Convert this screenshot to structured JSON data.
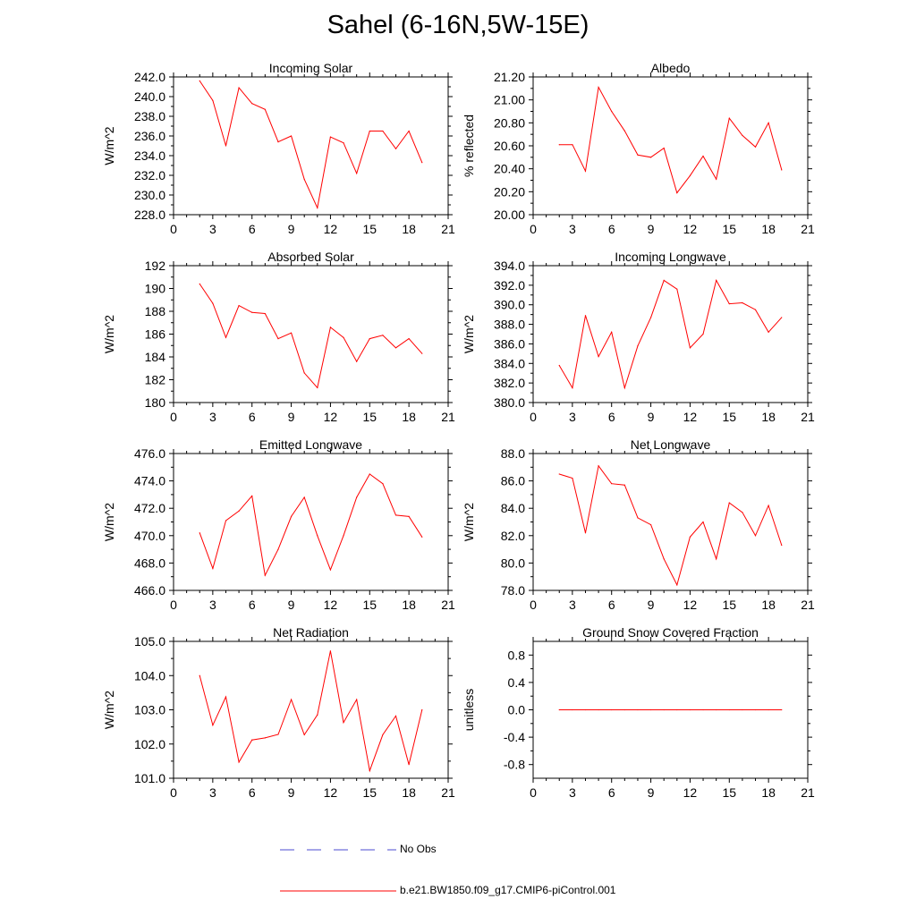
{
  "page_title": "Sahel (6-16N,5W-15E)",
  "colors": {
    "model": "#ff0000",
    "obs": "#4b4bd2",
    "axis": "#000000"
  },
  "legend": {
    "obs_label": "No Obs",
    "model_label": "b.e21.BW1850.f09_g17.CMIP6-piControl.001"
  },
  "chart_data": [
    {
      "type": "line",
      "title": "Incoming Solar",
      "xlabel": "",
      "ylabel": "W/m^2",
      "xlim": [
        0,
        21
      ],
      "xticks": [
        0,
        3,
        6,
        9,
        12,
        15,
        18,
        21
      ],
      "ylim": [
        228,
        242
      ],
      "yticks": [
        "228.0",
        "230.0",
        "232.0",
        "234.0",
        "236.0",
        "238.0",
        "240.0",
        "242.0"
      ],
      "series": [
        {
          "name": "b.e21.BW1850.f09_g17.CMIP6-piControl.001",
          "x": [
            2,
            3,
            4,
            5,
            6,
            7,
            8,
            9,
            10,
            11,
            12,
            13,
            14,
            15,
            16,
            17,
            18,
            19
          ],
          "y": [
            241.6,
            239.6,
            235.0,
            240.9,
            239.3,
            238.7,
            235.4,
            236.0,
            231.6,
            228.7,
            235.9,
            235.3,
            232.2,
            236.5,
            236.5,
            234.7,
            236.5,
            233.3
          ]
        }
      ]
    },
    {
      "type": "line",
      "title": "Albedo",
      "xlabel": "",
      "ylabel": "% reflected",
      "xlim": [
        0,
        21
      ],
      "xticks": [
        0,
        3,
        6,
        9,
        12,
        15,
        18,
        21
      ],
      "ylim": [
        20.0,
        21.2
      ],
      "yticks": [
        "20.00",
        "20.20",
        "20.40",
        "20.60",
        "20.80",
        "21.00",
        "21.20"
      ],
      "series": [
        {
          "name": "b.e21.BW1850.f09_g17.CMIP6-piControl.001",
          "x": [
            2,
            3,
            4,
            5,
            6,
            7,
            8,
            9,
            10,
            11,
            12,
            13,
            14,
            15,
            16,
            17,
            18,
            19
          ],
          "y": [
            20.61,
            20.61,
            20.38,
            21.11,
            20.9,
            20.73,
            20.52,
            20.5,
            20.58,
            20.19,
            20.34,
            20.51,
            20.31,
            20.84,
            20.69,
            20.59,
            20.8,
            20.39
          ]
        }
      ]
    },
    {
      "type": "line",
      "title": "Absorbed Solar",
      "xlabel": "",
      "ylabel": "W/m^2",
      "xlim": [
        0,
        21
      ],
      "xticks": [
        0,
        3,
        6,
        9,
        12,
        15,
        18,
        21
      ],
      "ylim": [
        180,
        192
      ],
      "yticks": [
        "180",
        "182",
        "184",
        "186",
        "188",
        "190",
        "192"
      ],
      "series": [
        {
          "name": "b.e21.BW1850.f09_g17.CMIP6-piControl.001",
          "x": [
            2,
            3,
            4,
            5,
            6,
            7,
            8,
            9,
            10,
            11,
            12,
            13,
            14,
            15,
            16,
            17,
            18,
            19
          ],
          "y": [
            190.4,
            188.7,
            185.7,
            188.5,
            187.9,
            187.8,
            185.6,
            186.1,
            182.6,
            181.3,
            186.6,
            185.7,
            183.6,
            185.6,
            185.9,
            184.8,
            185.6,
            184.3
          ]
        }
      ]
    },
    {
      "type": "line",
      "title": "Incoming Longwave",
      "xlabel": "",
      "ylabel": "W/m^2",
      "xlim": [
        0,
        21
      ],
      "xticks": [
        0,
        3,
        6,
        9,
        12,
        15,
        18,
        21
      ],
      "ylim": [
        380,
        394
      ],
      "yticks": [
        "380.0",
        "382.0",
        "384.0",
        "386.0",
        "388.0",
        "390.0",
        "392.0",
        "394.0"
      ],
      "series": [
        {
          "name": "b.e21.BW1850.f09_g17.CMIP6-piControl.001",
          "x": [
            2,
            3,
            4,
            5,
            6,
            7,
            8,
            9,
            10,
            11,
            12,
            13,
            14,
            15,
            16,
            17,
            18,
            19
          ],
          "y": [
            383.8,
            381.5,
            388.9,
            384.7,
            387.2,
            381.5,
            385.8,
            388.7,
            392.5,
            391.6,
            385.6,
            387.0,
            392.5,
            390.1,
            390.2,
            389.5,
            387.2,
            388.7
          ]
        }
      ]
    },
    {
      "type": "line",
      "title": "Emitted Longwave",
      "xlabel": "",
      "ylabel": "W/m^2",
      "xlim": [
        0,
        21
      ],
      "xticks": [
        0,
        3,
        6,
        9,
        12,
        15,
        18,
        21
      ],
      "ylim": [
        466,
        476
      ],
      "yticks": [
        "466.0",
        "468.0",
        "470.0",
        "472.0",
        "474.0",
        "476.0"
      ],
      "series": [
        {
          "name": "b.e21.BW1850.f09_g17.CMIP6-piControl.001",
          "x": [
            2,
            3,
            4,
            5,
            6,
            7,
            8,
            9,
            10,
            11,
            12,
            13,
            14,
            15,
            16,
            17,
            18,
            19
          ],
          "y": [
            470.2,
            467.6,
            471.1,
            471.8,
            472.9,
            467.1,
            469.0,
            471.4,
            472.8,
            470.0,
            467.5,
            470.0,
            472.8,
            474.5,
            473.8,
            471.5,
            471.4,
            469.9
          ]
        }
      ]
    },
    {
      "type": "line",
      "title": "Net Longwave",
      "xlabel": "",
      "ylabel": "W/m^2",
      "xlim": [
        0,
        21
      ],
      "xticks": [
        0,
        3,
        6,
        9,
        12,
        15,
        18,
        21
      ],
      "ylim": [
        78,
        88
      ],
      "yticks": [
        "78.0",
        "80.0",
        "82.0",
        "84.0",
        "86.0",
        "88.0"
      ],
      "series": [
        {
          "name": "b.e21.BW1850.f09_g17.CMIP6-piControl.001",
          "x": [
            2,
            3,
            4,
            5,
            6,
            7,
            8,
            9,
            10,
            11,
            12,
            13,
            14,
            15,
            16,
            17,
            18,
            19
          ],
          "y": [
            86.5,
            86.2,
            82.2,
            87.1,
            85.8,
            85.7,
            83.3,
            82.8,
            80.3,
            78.4,
            81.9,
            83.0,
            80.3,
            84.4,
            83.7,
            82.0,
            84.2,
            81.3
          ]
        }
      ]
    },
    {
      "type": "line",
      "title": "Net Radiation",
      "xlabel": "",
      "ylabel": "W/m^2",
      "xlim": [
        0,
        21
      ],
      "xticks": [
        0,
        3,
        6,
        9,
        12,
        15,
        18,
        21
      ],
      "ylim": [
        101,
        105
      ],
      "yticks": [
        "101.0",
        "102.0",
        "103.0",
        "104.0",
        "105.0"
      ],
      "series": [
        {
          "name": "b.e21.BW1850.f09_g17.CMIP6-piControl.001",
          "x": [
            2,
            3,
            4,
            5,
            6,
            7,
            8,
            9,
            10,
            11,
            12,
            13,
            14,
            15,
            16,
            17,
            18,
            19
          ],
          "y": [
            104.0,
            102.55,
            103.38,
            101.47,
            102.12,
            102.18,
            102.28,
            103.3,
            102.27,
            102.85,
            104.72,
            102.63,
            103.3,
            101.22,
            102.27,
            102.82,
            101.4,
            103.0
          ]
        }
      ]
    },
    {
      "type": "line",
      "title": "Ground Snow Covered Fraction",
      "xlabel": "",
      "ylabel": "unitless",
      "xlim": [
        0,
        21
      ],
      "xticks": [
        0,
        3,
        6,
        9,
        12,
        15,
        18,
        21
      ],
      "ylim": [
        -1.0,
        1.0
      ],
      "yticks": [
        "-0.8",
        "-0.4",
        "0.0",
        "0.4",
        "0.8"
      ],
      "ytick_values": [
        -0.8,
        -0.4,
        0.0,
        0.4,
        0.8
      ],
      "series": [
        {
          "name": "b.e21.BW1850.f09_g17.CMIP6-piControl.001",
          "x": [
            2,
            3,
            4,
            5,
            6,
            7,
            8,
            9,
            10,
            11,
            12,
            13,
            14,
            15,
            16,
            17,
            18,
            19
          ],
          "y": [
            0,
            0,
            0,
            0,
            0,
            0,
            0,
            0,
            0,
            0,
            0,
            0,
            0,
            0,
            0,
            0,
            0,
            0
          ]
        }
      ]
    }
  ]
}
